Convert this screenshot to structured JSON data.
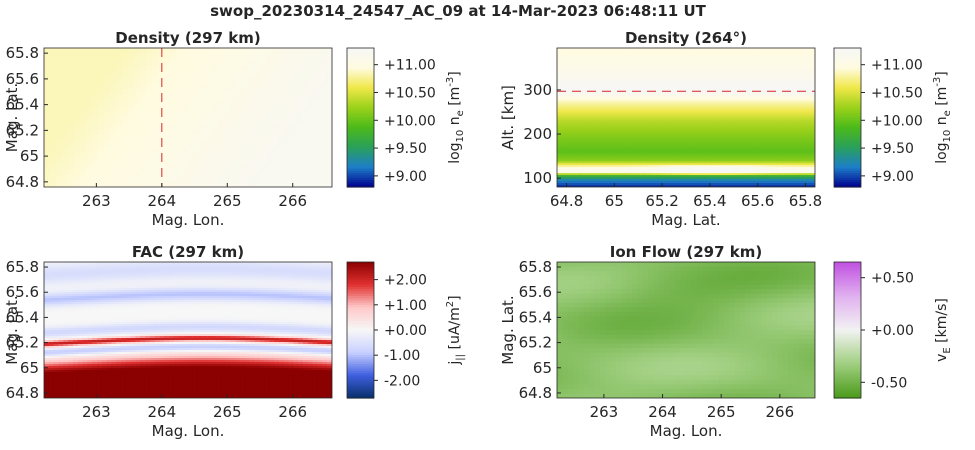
{
  "figure_title": "swop_20230314_24547_AC_09 at 14-Mar-2023 06:48:11 UT",
  "colors": {
    "density_map": [
      "#00008f",
      "#1d7fc8",
      "#2aa05a",
      "#4cba1a",
      "#9bd11a",
      "#f0e84a",
      "#fffbe0",
      "#f7f7f7"
    ],
    "fac_map": [
      "#08306b",
      "#3f5fe0",
      "#c8d0ff",
      "#f7f7f7",
      "#ffc8c8",
      "#e03030",
      "#8b0000"
    ],
    "flow_map": [
      "#4a9a1a",
      "#a0cf80",
      "#f2f2f2",
      "#e0b0f0",
      "#c050e0"
    ],
    "reference_line": "#d62728",
    "axis": "#262626"
  },
  "chart_data": [
    {
      "type": "heatmap",
      "title": "Density (297 km)",
      "xlabel": "Mag. Lon.",
      "ylabel": "Mag. Lat.",
      "xlim": [
        262.2,
        266.6
      ],
      "ylim": [
        64.76,
        65.84
      ],
      "xticks": [
        "263",
        "264",
        "265",
        "266"
      ],
      "yticks": [
        "64.8",
        "65",
        "65.2",
        "65.4",
        "65.6",
        "65.8"
      ],
      "reference_line": {
        "axis": "x",
        "value": 264,
        "style": "dashed"
      },
      "field_range": [
        10.85,
        11.2
      ],
      "colorbar": {
        "label": "log10 ne [m-3]",
        "label_main": "log",
        "label_sub": "10",
        "label_rest": " n",
        "label_sub2": "e",
        "label_unit": " [m",
        "label_sup": "-3",
        "label_end": "]",
        "range": [
          8.8,
          11.3
        ],
        "ticks": [
          "+9.00",
          "+9.50",
          "+10.00",
          "+10.50",
          "+11.00"
        ],
        "tick_values": [
          9.0,
          9.5,
          10.0,
          10.5,
          11.0
        ]
      }
    },
    {
      "type": "heatmap",
      "title": "Density (264°)",
      "xlabel": "Mag. Lat.",
      "ylabel": "Alt. [km]",
      "xlim": [
        64.76,
        65.84
      ],
      "ylim": [
        80,
        395
      ],
      "xticks": [
        "64.8",
        "65",
        "65.2",
        "65.4",
        "65.6",
        "65.8"
      ],
      "yticks": [
        "100",
        "200",
        "300"
      ],
      "reference_line": {
        "axis": "y",
        "value": 297,
        "style": "dashed"
      },
      "altitude_profile": [
        {
          "alt": 80,
          "value": 8.9
        },
        {
          "alt": 95,
          "value": 9.2
        },
        {
          "alt": 105,
          "value": 9.7
        },
        {
          "alt": 115,
          "value": 11.25
        },
        {
          "alt": 125,
          "value": 10.9
        },
        {
          "alt": 140,
          "value": 10.15
        },
        {
          "alt": 160,
          "value": 9.95
        },
        {
          "alt": 190,
          "value": 10.1
        },
        {
          "alt": 230,
          "value": 10.35
        },
        {
          "alt": 270,
          "value": 10.8
        },
        {
          "alt": 300,
          "value": 11.3
        },
        {
          "alt": 340,
          "value": 11.1
        },
        {
          "alt": 395,
          "value": 10.95
        }
      ],
      "colorbar": {
        "label": "log10 ne [m-3]",
        "label_main": "log",
        "label_sub": "10",
        "label_rest": " n",
        "label_sub2": "e",
        "label_unit": " [m",
        "label_sup": "-3",
        "label_end": "]",
        "range": [
          8.8,
          11.3
        ],
        "ticks": [
          "+9.00",
          "+9.50",
          "+10.00",
          "+10.50",
          "+11.00"
        ],
        "tick_values": [
          9.0,
          9.5,
          10.0,
          10.5,
          11.0
        ]
      }
    },
    {
      "type": "heatmap",
      "title": "FAC (297 km)",
      "xlabel": "Mag. Lon.",
      "ylabel": "Mag. Lat.",
      "xlim": [
        262.2,
        266.6
      ],
      "ylim": [
        64.76,
        65.84
      ],
      "xticks": [
        "263",
        "264",
        "265",
        "266"
      ],
      "yticks": [
        "64.8",
        "65",
        "65.2",
        "65.4",
        "65.6",
        "65.8"
      ],
      "bands": [
        {
          "lat": 64.95,
          "value": 2.8,
          "width": 0.1
        },
        {
          "lat": 65.2,
          "value": 2.1,
          "width": 0.025
        },
        {
          "lat": 65.13,
          "value": -1.0,
          "width": 0.03
        },
        {
          "lat": 65.29,
          "value": -0.7,
          "width": 0.04
        },
        {
          "lat": 65.55,
          "value": -1.0,
          "width": 0.05
        },
        {
          "lat": 65.75,
          "value": -0.6,
          "width": 0.08
        }
      ],
      "colorbar": {
        "label": "j|| [uA/m2]",
        "label_main": "j",
        "label_sub": "||",
        "label_rest": " [uA/m",
        "label_sup": "2",
        "label_end": "]",
        "range": [
          -2.7,
          2.7
        ],
        "ticks": [
          "-2.00",
          "-1.00",
          "+0.00",
          "+1.00",
          "+2.00"
        ],
        "tick_values": [
          -2.0,
          -1.0,
          0.0,
          1.0,
          2.0
        ]
      }
    },
    {
      "type": "heatmap",
      "title": "Ion Flow (297 km)",
      "xlabel": "Mag. Lon.",
      "ylabel": "Mag. Lat.",
      "xlim": [
        262.2,
        266.6
      ],
      "ylim": [
        64.76,
        65.84
      ],
      "xticks": [
        "263",
        "264",
        "265",
        "266"
      ],
      "yticks": [
        "64.8",
        "65",
        "65.2",
        "65.4",
        "65.6",
        "65.8"
      ],
      "field_range": [
        -0.55,
        -0.25
      ],
      "colorbar": {
        "label": "vE [km/s]",
        "label_main": "v",
        "label_sub": "E",
        "label_rest": " [km/s]",
        "range": [
          -0.65,
          0.65
        ],
        "ticks": [
          "-0.50",
          "+0.00",
          "+0.50"
        ],
        "tick_values": [
          -0.5,
          0.0,
          0.5
        ]
      }
    }
  ]
}
